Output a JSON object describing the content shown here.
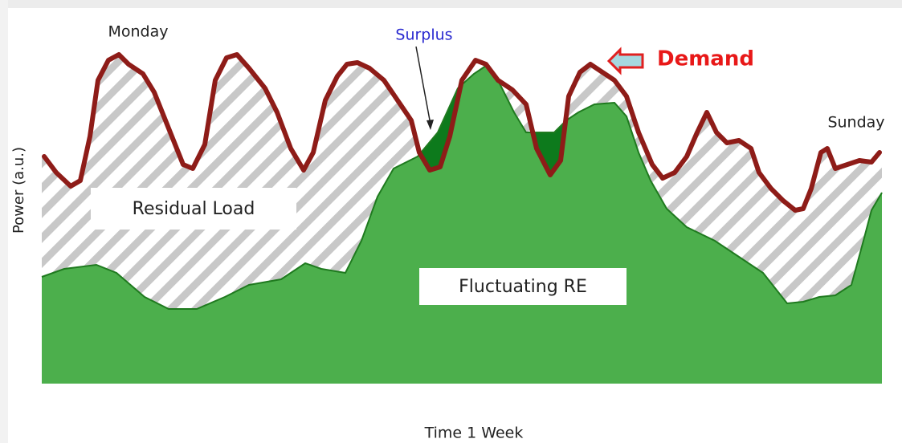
{
  "labels": {
    "monday": "Monday",
    "surplus": "Surplus",
    "demand": "Demand",
    "sunday": "Sunday",
    "residual_load": "Residual Load",
    "fluctuating_re": "Fluctuating RE",
    "y_axis": "Power (a.u.)",
    "x_axis": "Time 1 Week"
  }
}
